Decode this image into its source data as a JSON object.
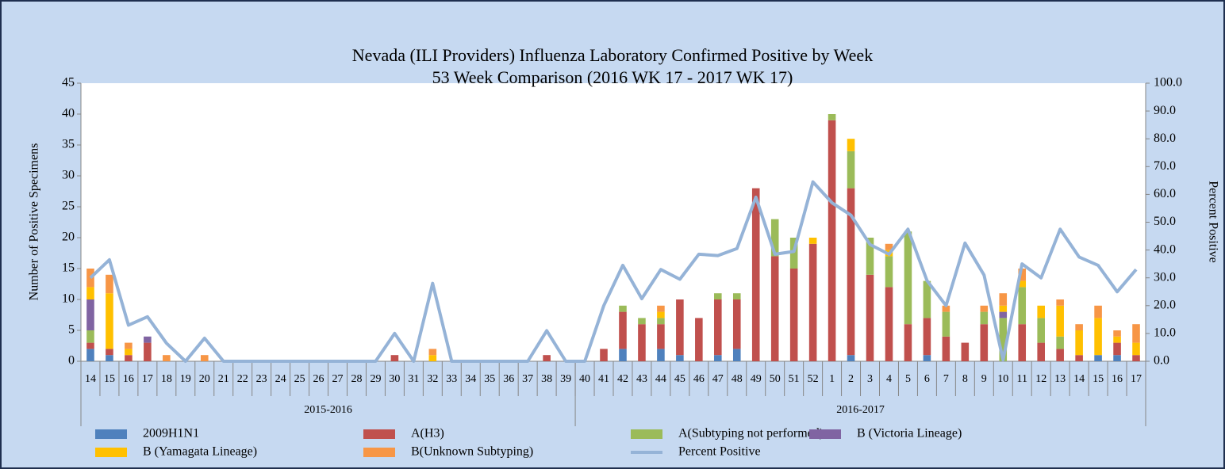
{
  "chart_data": {
    "type": "stacked-bar-line",
    "title": "Nevada (ILI Providers) Influenza Laboratory Confirmed Positive by Week",
    "subtitle": "53 Week Comparison (2016 WK 17 - 2017 WK 17)",
    "y_label": "Number of Positive Specimens",
    "y2_label": "Percent Positive",
    "groups": [
      {
        "label": "2015-2016",
        "categories": [
          "14",
          "15",
          "16",
          "17",
          "18",
          "19",
          "20",
          "21",
          "22",
          "23",
          "24",
          "25",
          "26",
          "27",
          "28",
          "29",
          "30",
          "31",
          "32",
          "33",
          "34",
          "35",
          "36",
          "37",
          "38",
          "39"
        ]
      },
      {
        "label": "2016-2017",
        "categories": [
          "40",
          "41",
          "42",
          "43",
          "44",
          "45",
          "46",
          "47",
          "48",
          "49",
          "50",
          "51",
          "52",
          "1",
          "2",
          "3",
          "4",
          "5",
          "6",
          "7",
          "8",
          "9",
          "10",
          "11",
          "12",
          "13",
          "14",
          "15",
          "16",
          "17"
        ]
      }
    ],
    "series": [
      {
        "name": "2009H1N1",
        "color": "#4f81bd",
        "values": [
          2,
          1,
          0,
          0,
          0,
          0,
          0,
          0,
          0,
          0,
          0,
          0,
          0,
          0,
          0,
          0,
          0,
          0,
          0,
          0,
          0,
          0,
          0,
          0,
          0,
          0,
          0,
          0,
          2,
          0,
          2,
          1,
          0,
          1,
          2,
          0,
          0,
          0,
          0,
          0,
          1,
          0,
          0,
          0,
          1,
          0,
          0,
          0,
          0,
          0,
          0,
          0,
          0,
          1,
          1,
          0
        ]
      },
      {
        "name": "A(H3)",
        "color": "#c0504d",
        "values": [
          1,
          1,
          1,
          3,
          0,
          0,
          0,
          0,
          0,
          0,
          0,
          0,
          0,
          0,
          0,
          0,
          1,
          0,
          0,
          0,
          0,
          0,
          0,
          0,
          1,
          0,
          0,
          2,
          6,
          6,
          4,
          9,
          7,
          9,
          8,
          28,
          17,
          15,
          19,
          39,
          27,
          14,
          12,
          6,
          6,
          4,
          3,
          6,
          0,
          6,
          3,
          2,
          1,
          0,
          2,
          1
        ]
      },
      {
        "name": "A(Subtyping not performed)",
        "color": "#9bbb59",
        "values": [
          2,
          0,
          0,
          0,
          0,
          0,
          0,
          0,
          0,
          0,
          0,
          0,
          0,
          0,
          0,
          0,
          0,
          0,
          0,
          0,
          0,
          0,
          0,
          0,
          0,
          0,
          0,
          0,
          1,
          1,
          1,
          0,
          0,
          1,
          1,
          0,
          6,
          5,
          0,
          1,
          6,
          6,
          5,
          15,
          6,
          4,
          0,
          2,
          7,
          6,
          4,
          2,
          0,
          0,
          0,
          0
        ]
      },
      {
        "name": "B (Victoria Lineage)",
        "color": "#8064a2",
        "values": [
          5,
          0,
          0,
          1,
          0,
          0,
          0,
          0,
          0,
          0,
          0,
          0,
          0,
          0,
          0,
          0,
          0,
          0,
          0,
          0,
          0,
          0,
          0,
          0,
          0,
          0,
          0,
          0,
          0,
          0,
          0,
          0,
          0,
          0,
          0,
          0,
          0,
          0,
          0,
          0,
          0,
          0,
          0,
          0,
          0,
          0,
          0,
          0,
          1,
          0,
          0,
          0,
          0,
          0,
          0,
          0
        ]
      },
      {
        "name": "B (Yamagata Lineage)",
        "color": "#ffc000",
        "values": [
          2,
          9,
          1,
          0,
          0,
          0,
          0,
          0,
          0,
          0,
          0,
          0,
          0,
          0,
          0,
          0,
          0,
          0,
          1,
          0,
          0,
          0,
          0,
          0,
          0,
          0,
          0,
          0,
          0,
          0,
          1,
          0,
          0,
          0,
          0,
          0,
          0,
          0,
          1,
          0,
          2,
          0,
          1,
          0,
          0,
          0,
          0,
          0,
          1,
          1,
          2,
          5,
          4,
          6,
          1,
          2
        ]
      },
      {
        "name": "B(Unknown Subtyping)",
        "color": "#f79646",
        "values": [
          3,
          3,
          1,
          0,
          1,
          0,
          1,
          0,
          0,
          0,
          0,
          0,
          0,
          0,
          0,
          0,
          0,
          0,
          1,
          0,
          0,
          0,
          0,
          0,
          0,
          0,
          0,
          0,
          0,
          0,
          1,
          0,
          0,
          0,
          0,
          0,
          0,
          0,
          0,
          0,
          0,
          0,
          1,
          0,
          0,
          1,
          0,
          1,
          2,
          2,
          0,
          1,
          1,
          2,
          1,
          3
        ]
      },
      {
        "name": "Percent Positive",
        "color": "#95b3d7",
        "axis": "y2",
        "values": [
          30,
          36.5,
          13,
          16,
          6.5,
          0,
          8.3,
          0,
          0,
          0,
          0,
          0,
          0,
          0,
          0,
          0,
          10,
          0,
          28,
          0,
          0,
          0,
          0,
          0,
          11,
          0,
          0,
          20,
          34.5,
          22.5,
          33,
          29.5,
          38.5,
          38,
          40.5,
          59,
          38.5,
          39.5,
          64.5,
          57,
          52.5,
          42,
          38.5,
          47.5,
          29,
          20,
          42.5,
          31,
          0.5,
          35,
          30,
          47.5,
          37.5,
          34.5,
          25,
          33
        ]
      }
    ],
    "ylim": [
      0,
      45
    ],
    "yticks": [
      0,
      5,
      10,
      15,
      20,
      25,
      30,
      35,
      40,
      45
    ],
    "y2lim": [
      0,
      100
    ],
    "y2ticks": [
      {
        "value": 0,
        "label": "0.0"
      },
      {
        "value": 10,
        "label": "10.0"
      },
      {
        "value": 20,
        "label": "20.0"
      },
      {
        "value": 30,
        "label": "30.0"
      },
      {
        "value": 40,
        "label": "40.0"
      },
      {
        "value": 50,
        "label": "50.0"
      },
      {
        "value": 60,
        "label": "60.0"
      },
      {
        "value": 70,
        "label": "70.0"
      },
      {
        "value": 80,
        "label": "80.0"
      },
      {
        "value": 90,
        "label": "90.0"
      },
      {
        "value": 100,
        "label": "100.0"
      }
    ],
    "grid": false,
    "legend": "bottom"
  }
}
